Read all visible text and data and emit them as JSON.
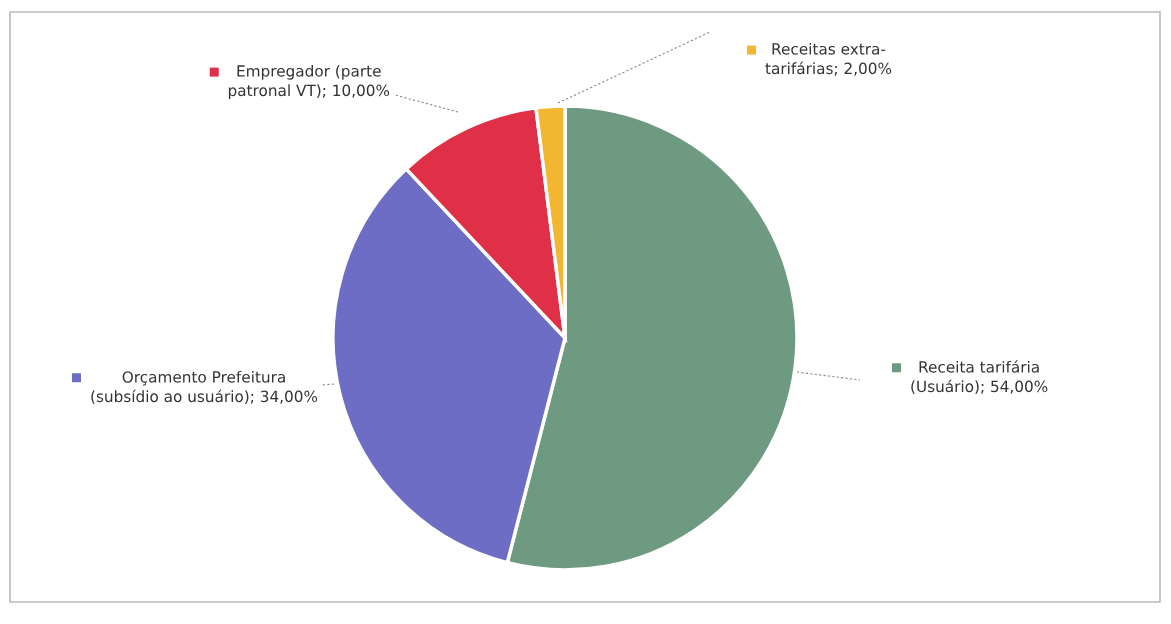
{
  "chart_data": {
    "type": "pie",
    "categories": [
      "Receita tarifária\n(Usuário)",
      "Orçamento Prefeitura\n(subsídio ao usuário)",
      "Empregador (parte\npatronal VT)",
      "Receitas extra-\ntarifárias"
    ],
    "values": [
      54,
      34,
      10,
      2
    ],
    "value_labels": [
      "54,00%",
      "34,00%",
      "10,00%",
      "2,00%"
    ],
    "colors": [
      "#6f9a82",
      "#6d6dc6",
      "#e03048",
      "#f2b631"
    ],
    "legend": "top"
  }
}
